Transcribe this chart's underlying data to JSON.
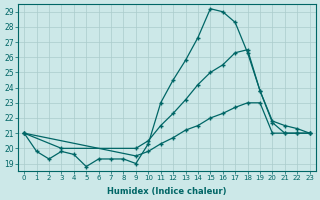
{
  "xlabel": "Humidex (Indice chaleur)",
  "ylabel": "",
  "bg_color": "#cce8e8",
  "grid_color": "#aacccc",
  "line_color": "#006666",
  "xlim": [
    -0.5,
    23.5
  ],
  "ylim": [
    18.5,
    29.5
  ],
  "yticks": [
    19,
    20,
    21,
    22,
    23,
    24,
    25,
    26,
    27,
    28,
    29
  ],
  "xticks": [
    0,
    1,
    2,
    3,
    4,
    5,
    6,
    7,
    8,
    9,
    10,
    11,
    12,
    13,
    14,
    15,
    16,
    17,
    18,
    19,
    20,
    21,
    22,
    23
  ],
  "line1_x": [
    0,
    1,
    2,
    3,
    4,
    5,
    6,
    7,
    8,
    9,
    10,
    11,
    12,
    13,
    14,
    15,
    16,
    17,
    18,
    19,
    20,
    21,
    22,
    23
  ],
  "line1_y": [
    21.0,
    19.8,
    19.3,
    19.8,
    19.6,
    18.8,
    19.3,
    19.3,
    19.3,
    19.0,
    20.3,
    23.0,
    24.5,
    25.8,
    27.3,
    29.2,
    29.0,
    28.3,
    26.3,
    23.8,
    21.7,
    21.0,
    21.0,
    21.0
  ],
  "line2_x": [
    0,
    3,
    9,
    10,
    11,
    12,
    13,
    14,
    15,
    16,
    17,
    18,
    19,
    20,
    21,
    22,
    23
  ],
  "line2_y": [
    21.0,
    20.0,
    20.0,
    20.5,
    21.5,
    22.3,
    23.2,
    24.2,
    25.0,
    25.5,
    26.3,
    26.5,
    23.8,
    21.8,
    21.5,
    21.3,
    21.0
  ],
  "line3_x": [
    0,
    9,
    10,
    11,
    12,
    13,
    14,
    15,
    16,
    17,
    18,
    19,
    20,
    21,
    22,
    23
  ],
  "line3_y": [
    21.0,
    19.5,
    19.8,
    20.3,
    20.7,
    21.2,
    21.5,
    22.0,
    22.3,
    22.7,
    23.0,
    23.0,
    21.0,
    21.0,
    21.0,
    21.0
  ],
  "marker": "+",
  "marker_size": 3,
  "line_width": 0.9
}
